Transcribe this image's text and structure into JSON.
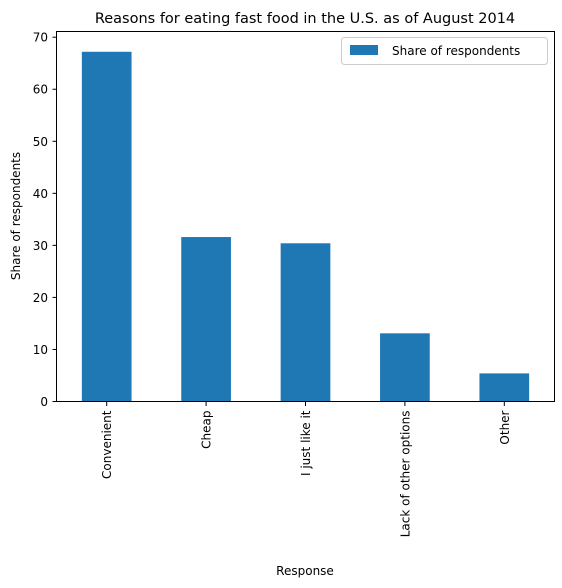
{
  "chart_data": {
    "type": "bar",
    "title": "Reasons for eating fast food in the U.S. as of August 2014",
    "xlabel": "Response",
    "ylabel": "Share of respondents",
    "categories": [
      "Convenient",
      "Cheap",
      "I just like it",
      "Lack of other options",
      "Other"
    ],
    "series": [
      {
        "name": "Share of respondents",
        "values": [
          67.2,
          31.6,
          30.4,
          13.1,
          5.4
        ]
      }
    ],
    "ylim": [
      0,
      71
    ],
    "yticks": [
      0,
      10,
      20,
      30,
      40,
      50,
      60,
      70
    ],
    "grid": false,
    "legend": "top-right",
    "bar_color": "#1f77b4"
  }
}
